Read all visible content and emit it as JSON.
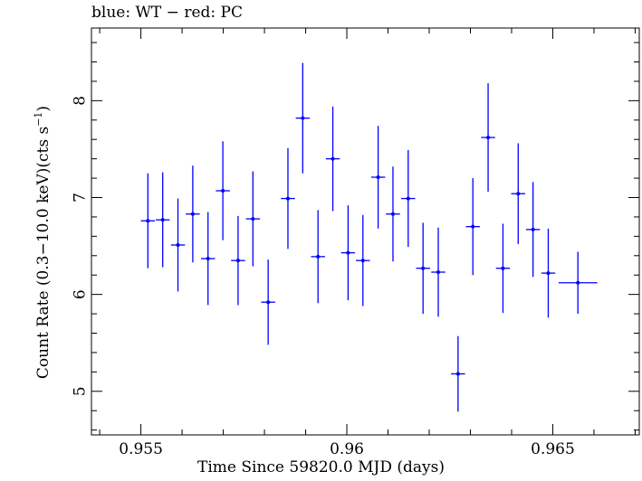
{
  "chart_data": {
    "type": "scatter",
    "title": "blue: WT − red: PC",
    "xlabel": "Time Since 59820.0 MJD (days)",
    "ylabel_main": "Count Rate (0.3−10.0 keV)(cts s",
    "ylabel_sup": "−1",
    "ylabel_end": ")",
    "xlim": [
      0.9538,
      0.9671
    ],
    "ylim": [
      4.55,
      8.75
    ],
    "x_ticks": [
      0.955,
      0.96,
      0.965
    ],
    "x_tick_labels": [
      "0.955",
      "0.96",
      "0.965"
    ],
    "y_ticks": [
      5,
      6,
      7,
      8
    ],
    "y_tick_labels": [
      "5",
      "6",
      "7",
      "8"
    ],
    "series": [
      {
        "color": "#0000ff",
        "points": [
          {
            "x": 0.95517,
            "xerr": 0.00017,
            "y": 6.76,
            "yerr": 0.49
          },
          {
            "x": 0.95553,
            "xerr": 0.00017,
            "y": 6.77,
            "yerr": 0.49
          },
          {
            "x": 0.9559,
            "xerr": 0.00017,
            "y": 6.51,
            "yerr": 0.48
          },
          {
            "x": 0.95626,
            "xerr": 0.00017,
            "y": 6.83,
            "yerr": 0.5
          },
          {
            "x": 0.95663,
            "xerr": 0.00017,
            "y": 6.37,
            "yerr": 0.48
          },
          {
            "x": 0.95699,
            "xerr": 0.00017,
            "y": 7.07,
            "yerr": 0.51
          },
          {
            "x": 0.95736,
            "xerr": 0.00017,
            "y": 6.35,
            "yerr": 0.46
          },
          {
            "x": 0.95772,
            "xerr": 0.00017,
            "y": 6.78,
            "yerr": 0.49
          },
          {
            "x": 0.95809,
            "xerr": 0.00017,
            "y": 5.92,
            "yerr": 0.44
          },
          {
            "x": 0.95857,
            "xerr": 0.00017,
            "y": 6.99,
            "yerr": 0.52
          },
          {
            "x": 0.95893,
            "xerr": 0.00017,
            "y": 7.82,
            "yerr": 0.57
          },
          {
            "x": 0.9593,
            "xerr": 0.00017,
            "y": 6.39,
            "yerr": 0.48
          },
          {
            "x": 0.95966,
            "xerr": 0.00017,
            "y": 7.4,
            "yerr": 0.54
          },
          {
            "x": 0.96003,
            "xerr": 0.00017,
            "y": 6.43,
            "yerr": 0.49
          },
          {
            "x": 0.96039,
            "xerr": 0.00017,
            "y": 6.35,
            "yerr": 0.47
          },
          {
            "x": 0.96076,
            "xerr": 0.00017,
            "y": 7.21,
            "yerr": 0.53
          },
          {
            "x": 0.96112,
            "xerr": 0.00017,
            "y": 6.83,
            "yerr": 0.49
          },
          {
            "x": 0.96149,
            "xerr": 0.00017,
            "y": 6.99,
            "yerr": 0.5
          },
          {
            "x": 0.96185,
            "xerr": 0.00017,
            "y": 6.27,
            "yerr": 0.47
          },
          {
            "x": 0.96222,
            "xerr": 0.00017,
            "y": 6.23,
            "yerr": 0.46
          },
          {
            "x": 0.9627,
            "xerr": 0.00017,
            "y": 5.18,
            "yerr": 0.39
          },
          {
            "x": 0.96306,
            "xerr": 0.00017,
            "y": 6.7,
            "yerr": 0.5
          },
          {
            "x": 0.96343,
            "xerr": 0.00017,
            "y": 7.62,
            "yerr": 0.56
          },
          {
            "x": 0.96379,
            "xerr": 0.00017,
            "y": 6.27,
            "yerr": 0.46
          },
          {
            "x": 0.96416,
            "xerr": 0.00017,
            "y": 7.04,
            "yerr": 0.52
          },
          {
            "x": 0.96452,
            "xerr": 0.00017,
            "y": 6.67,
            "yerr": 0.49
          },
          {
            "x": 0.96489,
            "xerr": 0.00017,
            "y": 6.22,
            "yerr": 0.46
          },
          {
            "x": 0.96561,
            "xerr": 0.00047,
            "y": 6.12,
            "yerr": 0.32
          }
        ]
      }
    ]
  }
}
